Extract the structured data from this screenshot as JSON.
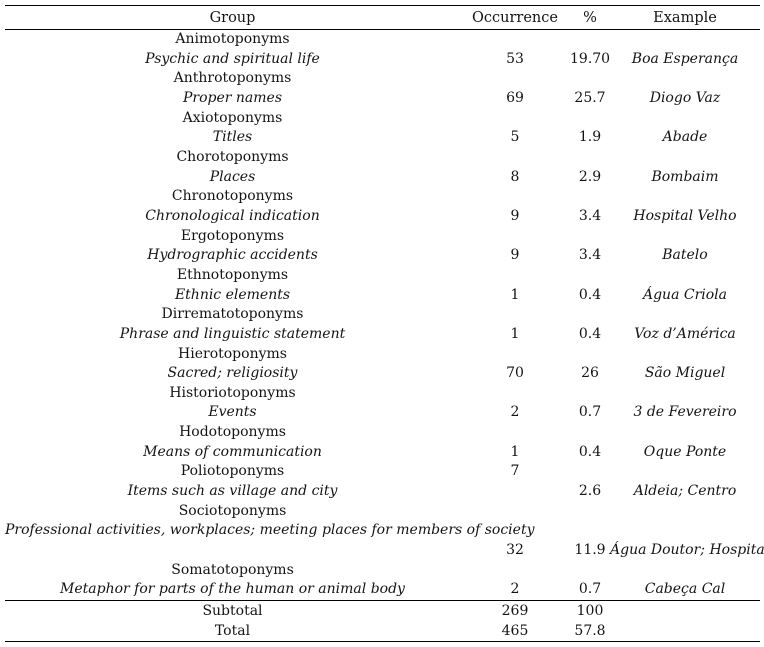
{
  "colors": {
    "text": "#141414",
    "rule": "#000000",
    "background": "#ffffff"
  },
  "columns": [
    "Group",
    "Occurrence",
    "%",
    "Example"
  ],
  "rows": [
    {
      "kind": "category",
      "group": "Animotoponyms",
      "occurrence": "",
      "percent": "",
      "example": ""
    },
    {
      "kind": "subcategory",
      "group": "Psychic and spiritual life",
      "occurrence": "53",
      "percent": "19.70",
      "example": "Boa Esperança"
    },
    {
      "kind": "category",
      "group": "Anthrotoponyms",
      "occurrence": "",
      "percent": "",
      "example": ""
    },
    {
      "kind": "subcategory",
      "group": "Proper names",
      "occurrence": "69",
      "percent": "25.7",
      "example": "Diogo Vaz"
    },
    {
      "kind": "category",
      "group": "Axiotoponyms",
      "occurrence": "",
      "percent": "",
      "example": ""
    },
    {
      "kind": "subcategory",
      "group": "Titles",
      "occurrence": "5",
      "percent": "1.9",
      "example": "Abade"
    },
    {
      "kind": "category",
      "group": "Chorotoponyms",
      "occurrence": "",
      "percent": "",
      "example": ""
    },
    {
      "kind": "subcategory",
      "group": "Places",
      "occurrence": "8",
      "percent": "2.9",
      "example": "Bombaim"
    },
    {
      "kind": "category",
      "group": "Chronotoponyms",
      "occurrence": "",
      "percent": "",
      "example": ""
    },
    {
      "kind": "subcategory",
      "group": "Chronological indication",
      "occurrence": "9",
      "percent": "3.4",
      "example": "Hospital Velho"
    },
    {
      "kind": "category",
      "group": "Ergotoponyms",
      "occurrence": "",
      "percent": "",
      "example": ""
    },
    {
      "kind": "subcategory",
      "group": "Hydrographic accidents",
      "occurrence": "9",
      "percent": "3.4",
      "example": "Batelo"
    },
    {
      "kind": "category",
      "group": "Ethnotoponyms",
      "occurrence": "",
      "percent": "",
      "example": ""
    },
    {
      "kind": "subcategory",
      "group": "Ethnic elements",
      "occurrence": "1",
      "percent": "0.4",
      "example": "Água Criola"
    },
    {
      "kind": "category",
      "group": "Dirrematotoponyms",
      "occurrence": "",
      "percent": "",
      "example": ""
    },
    {
      "kind": "subcategory",
      "group": "Phrase and linguistic statement",
      "occurrence": "1",
      "percent": "0.4",
      "example": "Voz d’América"
    },
    {
      "kind": "category",
      "group": "Hierotoponyms",
      "occurrence": "",
      "percent": "",
      "example": ""
    },
    {
      "kind": "subcategory",
      "group": "Sacred; religiosity",
      "occurrence": "70",
      "percent": "26",
      "example": "São Miguel"
    },
    {
      "kind": "category",
      "group": "Historiotoponyms",
      "occurrence": "",
      "percent": "",
      "example": ""
    },
    {
      "kind": "subcategory",
      "group": "Events",
      "occurrence": "2",
      "percent": "0.7",
      "example": "3 de Fevereiro"
    },
    {
      "kind": "category",
      "group": "Hodotoponyms",
      "occurrence": "",
      "percent": "",
      "example": ""
    },
    {
      "kind": "subcategory",
      "group": "Means of communication",
      "occurrence": "1",
      "percent": "0.4",
      "example": "Oque Ponte"
    },
    {
      "kind": "category",
      "group": "Poliotoponyms",
      "occurrence": "7",
      "percent": "",
      "example": ""
    },
    {
      "kind": "subcategory",
      "group": "Items such as village and city",
      "occurrence": "",
      "percent": "2.6",
      "example": "Aldeia; Centro"
    },
    {
      "kind": "category",
      "group": "Sociotoponyms",
      "occurrence": "",
      "percent": "",
      "example": ""
    },
    {
      "kind": "subcategory",
      "group": "Professional activities, workplaces; meeting places for members of society",
      "occurrence": "",
      "percent": "",
      "example": ""
    },
    {
      "kind": "category",
      "group": "",
      "occurrence": "32",
      "percent": "11.9",
      "example": "Água Doutor; Hospital"
    },
    {
      "kind": "category",
      "group": "Somatotoponyms",
      "occurrence": "",
      "percent": "",
      "example": ""
    },
    {
      "kind": "subcategory",
      "group": "Metaphor for parts of the human or animal body",
      "occurrence": "2",
      "percent": "0.7",
      "example": "Cabeça Cal"
    }
  ],
  "footer": [
    {
      "group": "Subtotal",
      "occurrence": "269",
      "percent": "100",
      "example": ""
    },
    {
      "group": "Total",
      "occurrence": "465",
      "percent": "57.8",
      "example": ""
    }
  ]
}
